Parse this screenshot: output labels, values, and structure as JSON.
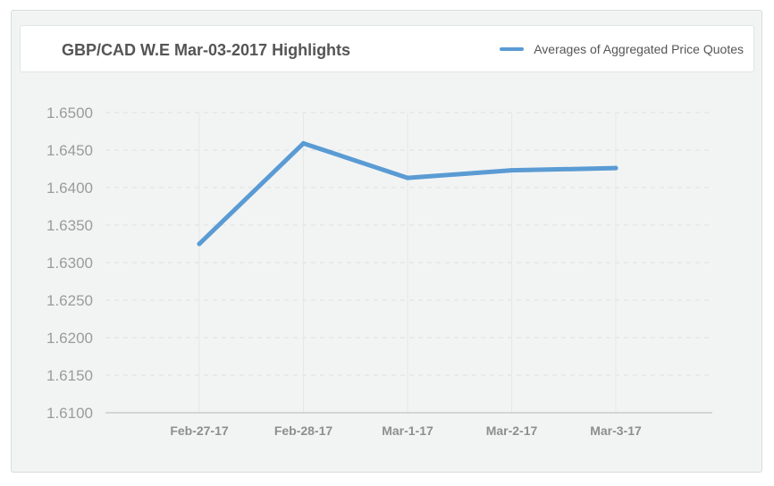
{
  "header": {
    "title": "GBP/CAD W.E Mar-03-2017 Highlights",
    "legend_label": "Averages of Aggregated Price Quotes"
  },
  "colors": {
    "series": "#5a9bd4",
    "grid": "#dcdfdf",
    "axis": "#c9cccc",
    "tick_text": "#9b9b9b",
    "x_text": "#8e8e8e"
  },
  "chart_data": {
    "type": "line",
    "title": "GBP/CAD W.E Mar-03-2017 Highlights",
    "xlabel": "",
    "ylabel": "",
    "categories": [
      "Feb-27-17",
      "Feb-28-17",
      "Mar-1-17",
      "Mar-2-17",
      "Mar-3-17"
    ],
    "series": [
      {
        "name": "Averages of Aggregated Price Quotes",
        "values": [
          1.6325,
          1.6459,
          1.6413,
          1.6423,
          1.6426
        ]
      }
    ],
    "ylim": [
      1.61,
      1.65
    ],
    "yticks": [
      "1.6100",
      "1.6150",
      "1.6200",
      "1.6250",
      "1.6300",
      "1.6350",
      "1.6400",
      "1.6450",
      "1.6500"
    ],
    "grid": true,
    "legend_position": "top-right"
  }
}
